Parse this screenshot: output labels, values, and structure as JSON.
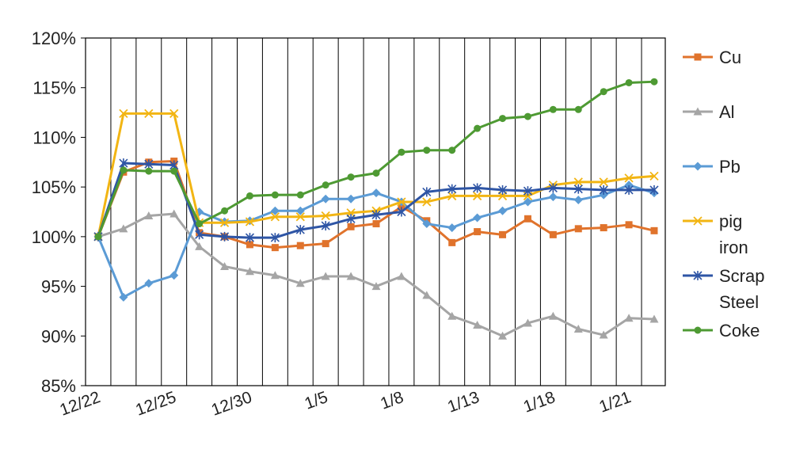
{
  "chart_data": {
    "type": "line",
    "title": "",
    "xlabel": "",
    "ylabel": "",
    "ylim": [
      0.85,
      1.2
    ],
    "yticks": [
      0.85,
      0.9,
      0.95,
      1.0,
      1.05,
      1.1,
      1.15,
      1.2
    ],
    "ytick_labels": [
      "85%",
      "90%",
      "95%",
      "100%",
      "105%",
      "110%",
      "115%",
      "120%"
    ],
    "xtick_labels": [
      {
        "index": 0,
        "label": "12/22"
      },
      {
        "index": 3,
        "label": "12/25"
      },
      {
        "index": 6,
        "label": "12/30"
      },
      {
        "index": 9,
        "label": "1/5"
      },
      {
        "index": 12,
        "label": "1/8"
      },
      {
        "index": 15,
        "label": "1/13"
      },
      {
        "index": 18,
        "label": "1/18"
      },
      {
        "index": 21,
        "label": "1/21"
      }
    ],
    "point_count": 23,
    "grid": {
      "vertical": true,
      "horizontal": false
    },
    "legend_position": "right",
    "series": [
      {
        "name": "Cu",
        "color": "#E0732C",
        "marker": "square",
        "values": [
          1.0,
          1.065,
          1.075,
          1.076,
          1.004,
          1.0,
          0.992,
          0.989,
          0.991,
          0.993,
          1.01,
          1.013,
          1.03,
          1.016,
          0.994,
          1.005,
          1.002,
          1.018,
          1.002,
          1.008,
          1.009,
          1.012,
          1.006
        ]
      },
      {
        "name": "Al",
        "color": "#A5A5A5",
        "marker": "triangle",
        "values": [
          1.0,
          1.008,
          1.021,
          1.023,
          0.99,
          0.97,
          0.965,
          0.961,
          0.953,
          0.96,
          0.96,
          0.95,
          0.96,
          0.941,
          0.92,
          0.911,
          0.9,
          0.913,
          0.92,
          0.907,
          0.901,
          0.918,
          0.917
        ]
      },
      {
        "name": "Pb",
        "color": "#5B9BD5",
        "marker": "diamond",
        "values": [
          1.0,
          0.939,
          0.953,
          0.961,
          1.025,
          1.015,
          1.016,
          1.026,
          1.026,
          1.038,
          1.038,
          1.044,
          1.035,
          1.013,
          1.009,
          1.019,
          1.026,
          1.035,
          1.04,
          1.037,
          1.042,
          1.052,
          1.044
        ]
      },
      {
        "name": "pig iron",
        "color": "#F2B513",
        "marker": "x",
        "values": [
          1.0,
          1.124,
          1.124,
          1.124,
          1.014,
          1.014,
          1.015,
          1.02,
          1.02,
          1.021,
          1.024,
          1.026,
          1.035,
          1.035,
          1.041,
          1.041,
          1.041,
          1.041,
          1.052,
          1.055,
          1.055,
          1.059,
          1.061
        ]
      },
      {
        "name": "Scrap Steel",
        "color": "#2E55A5",
        "marker": "asterisk",
        "values": [
          1.0,
          1.074,
          1.073,
          1.072,
          1.002,
          1.0,
          0.999,
          0.999,
          1.007,
          1.011,
          1.018,
          1.022,
          1.025,
          1.045,
          1.048,
          1.049,
          1.047,
          1.046,
          1.049,
          1.048,
          1.047,
          1.047,
          1.047
        ]
      },
      {
        "name": "Coke",
        "color": "#4E9A33",
        "marker": "circle",
        "values": [
          1.0,
          1.067,
          1.066,
          1.066,
          1.013,
          1.026,
          1.041,
          1.042,
          1.042,
          1.052,
          1.06,
          1.064,
          1.085,
          1.087,
          1.087,
          1.109,
          1.119,
          1.121,
          1.128,
          1.128,
          1.146,
          1.155,
          1.156
        ]
      }
    ]
  }
}
